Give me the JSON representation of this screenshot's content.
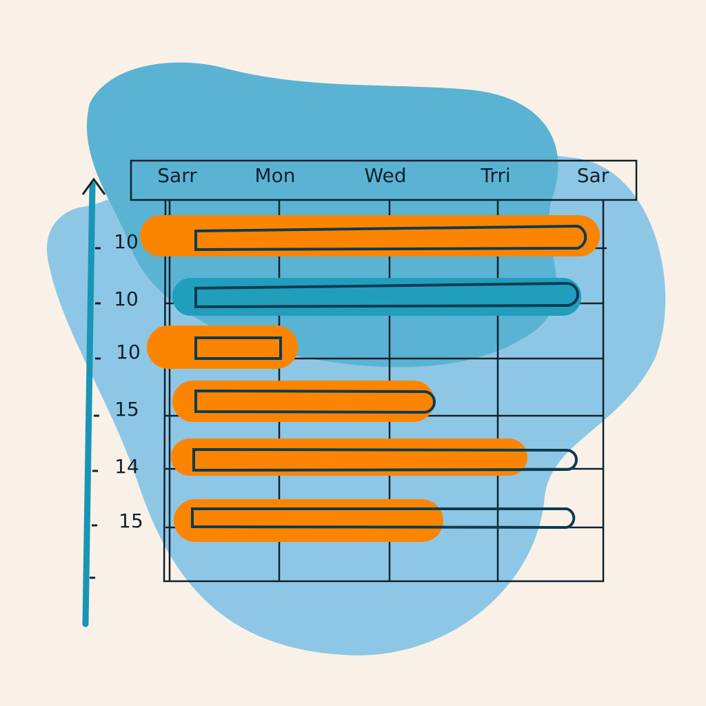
{
  "header": {
    "columns": [
      "Sarr",
      "Mon",
      "Wed",
      "Trri",
      "Sar"
    ]
  },
  "rows": [
    {
      "label": "10"
    },
    {
      "label": "10"
    },
    {
      "label": "10"
    },
    {
      "label": "15"
    },
    {
      "label": "14"
    },
    {
      "label": "15"
    }
  ]
}
